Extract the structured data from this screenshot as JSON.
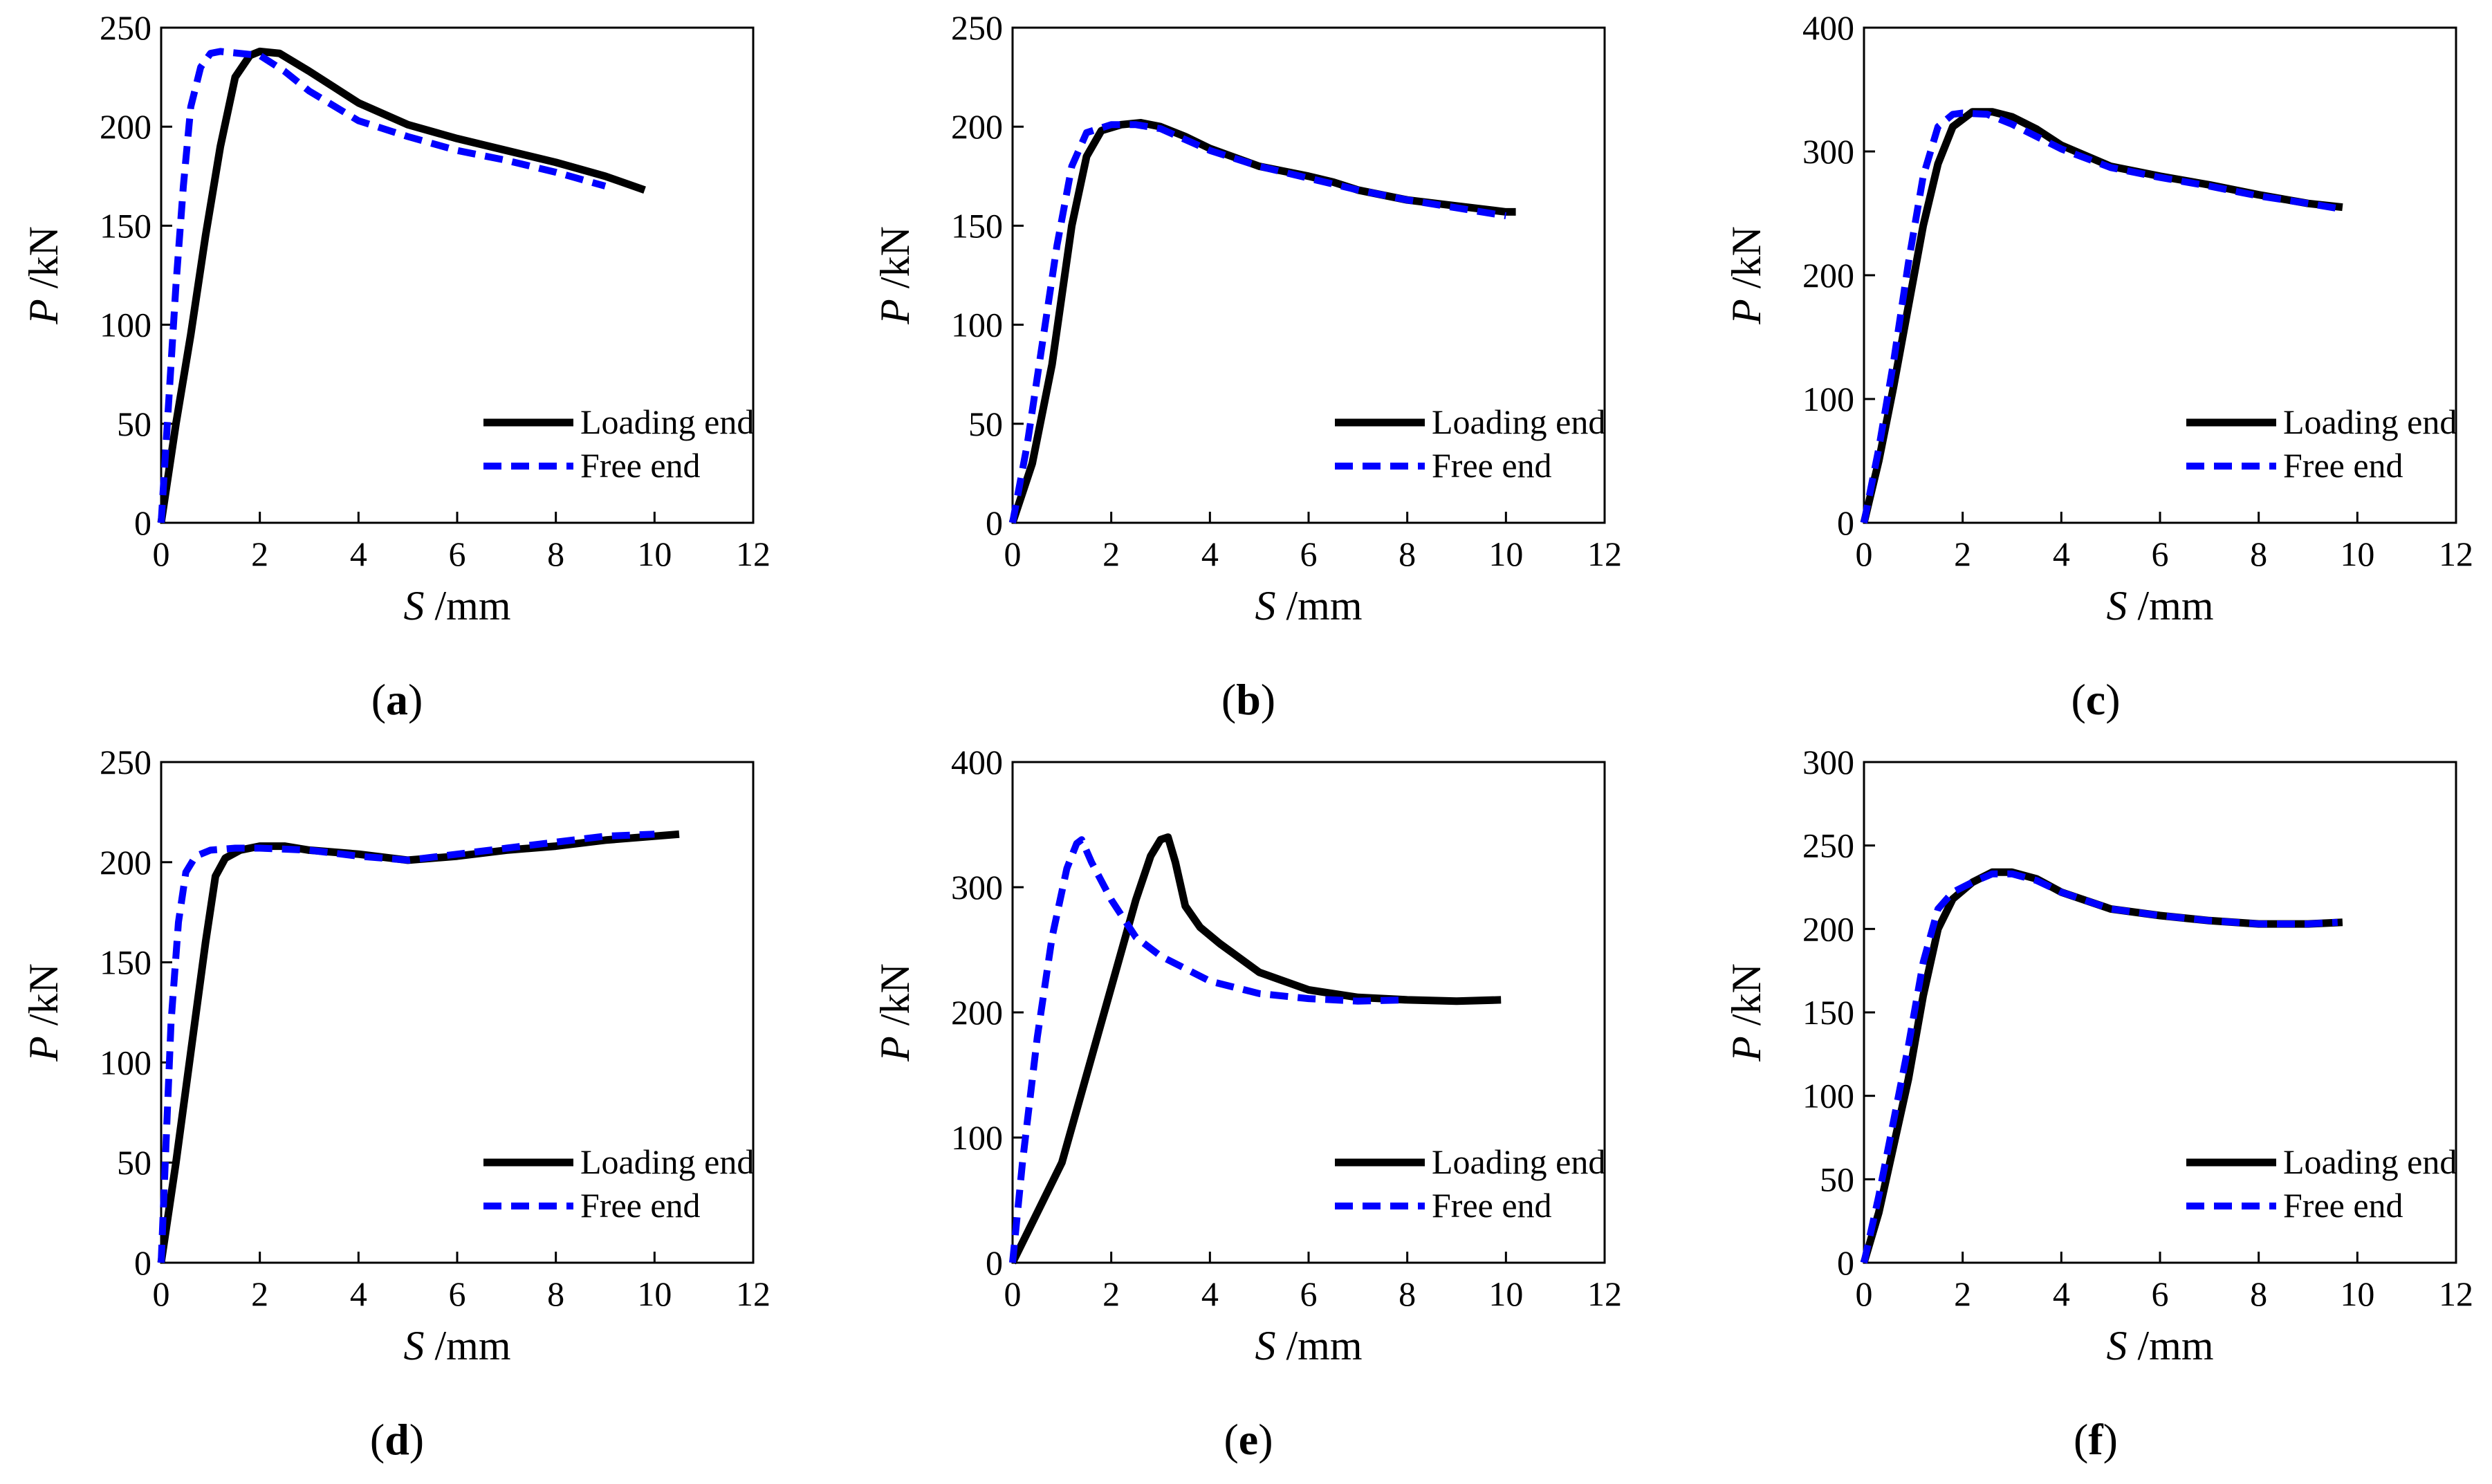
{
  "figure": {
    "legend_labels": [
      "Loading end",
      "Free end"
    ],
    "series_colors": {
      "loading": "#000000",
      "free": "#0000ff"
    },
    "x_label_var": "S",
    "x_label_unit": " /mm",
    "y_label_var": "P",
    "y_label_unit": " /kN"
  },
  "chart_data": [
    {
      "panel": "a",
      "caption_open": "(",
      "caption_letter": "a",
      "caption_close": ")",
      "type": "line",
      "xlabel": "S /mm",
      "ylabel": "P /kN",
      "xlim": [
        0,
        12
      ],
      "ylim": [
        0,
        250
      ],
      "xticks": [
        0,
        2,
        4,
        6,
        8,
        10,
        12
      ],
      "yticks": [
        0,
        50,
        100,
        150,
        200,
        250
      ],
      "legend_position": "lower-right",
      "series": [
        {
          "name": "Loading end",
          "style": "solid",
          "color": "#000000",
          "x": [
            0,
            0.3,
            0.6,
            0.9,
            1.2,
            1.5,
            1.8,
            2.0,
            2.4,
            3.0,
            3.5,
            4.0,
            5.0,
            6.0,
            7.0,
            8.0,
            9.0,
            9.8
          ],
          "y": [
            0,
            50,
            95,
            145,
            190,
            225,
            236,
            238,
            237,
            228,
            220,
            212,
            201,
            194,
            188,
            182,
            175,
            168
          ]
        },
        {
          "name": "Free end",
          "style": "dashed",
          "color": "#0000ff",
          "x": [
            0,
            0.15,
            0.3,
            0.45,
            0.6,
            0.8,
            1.0,
            1.2,
            2.0,
            2.5,
            3.0,
            4.0,
            5.0,
            6.0,
            7.0,
            8.0,
            9.0
          ],
          "y": [
            0,
            60,
            120,
            170,
            210,
            230,
            237,
            238,
            236,
            228,
            218,
            203,
            195,
            188,
            183,
            177,
            170
          ]
        }
      ]
    },
    {
      "panel": "b",
      "caption_open": "(",
      "caption_letter": "b",
      "caption_close": ")",
      "type": "line",
      "xlabel": "S /mm",
      "ylabel": "P /kN",
      "xlim": [
        0,
        12
      ],
      "ylim": [
        0,
        250
      ],
      "xticks": [
        0,
        2,
        4,
        6,
        8,
        10,
        12
      ],
      "yticks": [
        0,
        50,
        100,
        150,
        200,
        250
      ],
      "legend_position": "lower-right",
      "series": [
        {
          "name": "Loading end",
          "style": "solid",
          "color": "#000000",
          "x": [
            0,
            0.4,
            0.8,
            1.2,
            1.5,
            1.8,
            2.2,
            2.6,
            3.0,
            3.5,
            4.0,
            5.0,
            6.0,
            6.5,
            7.0,
            8.0,
            9.0,
            10.0,
            10.2
          ],
          "y": [
            0,
            30,
            80,
            150,
            185,
            198,
            201,
            202,
            200,
            195,
            189,
            180,
            175,
            172,
            168,
            163,
            160,
            157,
            157
          ]
        },
        {
          "name": "Free end",
          "style": "dashed",
          "color": "#0000ff",
          "x": [
            0,
            0.3,
            0.6,
            0.9,
            1.2,
            1.5,
            2.0,
            2.5,
            3.0,
            4.0,
            5.0,
            6.0,
            7.0,
            8.0,
            9.0,
            10.0
          ],
          "y": [
            0,
            40,
            90,
            140,
            180,
            197,
            201,
            201,
            199,
            188,
            180,
            174,
            168,
            163,
            159,
            155
          ]
        }
      ]
    },
    {
      "panel": "c",
      "caption_open": "(",
      "caption_letter": "c",
      "caption_close": ")",
      "type": "line",
      "xlabel": "S /mm",
      "ylabel": "P /kN",
      "xlim": [
        0,
        12
      ],
      "ylim": [
        0,
        400
      ],
      "xticks": [
        0,
        2,
        4,
        6,
        8,
        10,
        12
      ],
      "yticks": [
        0,
        100,
        200,
        300,
        400
      ],
      "legend_position": "lower-right",
      "series": [
        {
          "name": "Loading end",
          "style": "solid",
          "color": "#000000",
          "x": [
            0,
            0.3,
            0.6,
            0.9,
            1.2,
            1.5,
            1.8,
            2.2,
            2.6,
            3.0,
            3.5,
            4.0,
            5.0,
            6.0,
            7.0,
            8.0,
            9.0,
            9.7
          ],
          "y": [
            0,
            50,
            110,
            175,
            240,
            290,
            320,
            332,
            332,
            328,
            318,
            305,
            288,
            280,
            273,
            265,
            258,
            255
          ]
        },
        {
          "name": "Free end",
          "style": "dashed",
          "color": "#0000ff",
          "x": [
            0,
            0.3,
            0.6,
            0.9,
            1.2,
            1.5,
            1.8,
            2.0,
            2.5,
            3.0,
            4.0,
            5.0,
            6.0,
            7.0,
            8.0,
            9.0,
            9.6
          ],
          "y": [
            0,
            60,
            130,
            210,
            280,
            320,
            330,
            331,
            330,
            322,
            302,
            287,
            279,
            272,
            264,
            258,
            254
          ]
        }
      ]
    },
    {
      "panel": "d",
      "caption_open": "(",
      "caption_letter": "d",
      "caption_close": ")",
      "type": "line",
      "xlabel": "S /mm",
      "ylabel": "P /kN",
      "xlim": [
        0,
        12
      ],
      "ylim": [
        0,
        250
      ],
      "xticks": [
        0,
        2,
        4,
        6,
        8,
        10,
        12
      ],
      "yticks": [
        0,
        50,
        100,
        150,
        200,
        250
      ],
      "legend_position": "lower-right",
      "series": [
        {
          "name": "Loading end",
          "style": "solid",
          "color": "#000000",
          "x": [
            0,
            0.3,
            0.6,
            0.9,
            1.1,
            1.3,
            1.6,
            2.0,
            2.5,
            3.0,
            4.0,
            5.0,
            6.0,
            7.0,
            8.0,
            9.0,
            10.0,
            10.5
          ],
          "y": [
            0,
            50,
            105,
            160,
            193,
            202,
            206,
            208,
            208,
            206,
            204,
            201,
            203,
            206,
            208,
            211,
            213,
            214
          ]
        },
        {
          "name": "Free end",
          "style": "dashed",
          "color": "#0000ff",
          "x": [
            0,
            0.1,
            0.2,
            0.35,
            0.5,
            0.7,
            1.0,
            1.5,
            2.0,
            3.0,
            4.0,
            5.0,
            6.0,
            7.0,
            8.0,
            9.0,
            10.0
          ],
          "y": [
            0,
            60,
            120,
            170,
            195,
            203,
            206,
            207,
            207,
            206,
            203,
            201,
            204,
            207,
            210,
            213,
            214
          ]
        }
      ]
    },
    {
      "panel": "e",
      "caption_open": "(",
      "caption_letter": "e",
      "caption_close": ")",
      "type": "line",
      "xlabel": "S /mm",
      "ylabel": "P /kN",
      "xlim": [
        0,
        12
      ],
      "ylim": [
        0,
        400
      ],
      "xticks": [
        0,
        2,
        4,
        6,
        8,
        10,
        12
      ],
      "yticks": [
        0,
        100,
        200,
        300,
        400
      ],
      "legend_position": "lower-right",
      "series": [
        {
          "name": "Loading end",
          "style": "solid",
          "color": "#000000",
          "x": [
            0,
            0.5,
            1.0,
            1.5,
            2.0,
            2.5,
            2.8,
            3.0,
            3.15,
            3.3,
            3.5,
            3.8,
            4.2,
            5.0,
            6.0,
            7.0,
            8.0,
            9.0,
            9.9
          ],
          "y": [
            0,
            40,
            80,
            150,
            220,
            290,
            325,
            338,
            340,
            320,
            285,
            268,
            255,
            232,
            218,
            212,
            210,
            209,
            210
          ]
        },
        {
          "name": "Free end",
          "style": "dashed",
          "color": "#0000ff",
          "x": [
            0,
            0.2,
            0.5,
            0.8,
            1.1,
            1.3,
            1.4,
            1.6,
            2.0,
            2.5,
            3.0,
            4.0,
            5.0,
            6.0,
            7.0,
            8.0
          ],
          "y": [
            0,
            80,
            180,
            260,
            315,
            335,
            338,
            320,
            290,
            260,
            245,
            225,
            215,
            211,
            209,
            210
          ]
        }
      ]
    },
    {
      "panel": "f",
      "caption_open": "(",
      "caption_letter": "f",
      "caption_close": ")",
      "type": "line",
      "xlabel": "S /mm",
      "ylabel": "P /kN",
      "xlim": [
        0,
        12
      ],
      "ylim": [
        0,
        300
      ],
      "xticks": [
        0,
        2,
        4,
        6,
        8,
        10,
        12
      ],
      "yticks": [
        0,
        50,
        100,
        150,
        200,
        250,
        300
      ],
      "legend_position": "lower-right",
      "series": [
        {
          "name": "Loading end",
          "style": "solid",
          "color": "#000000",
          "x": [
            0,
            0.3,
            0.6,
            0.9,
            1.2,
            1.5,
            1.8,
            2.2,
            2.6,
            3.0,
            3.5,
            4.0,
            5.0,
            6.0,
            7.0,
            8.0,
            9.0,
            9.7
          ],
          "y": [
            0,
            30,
            70,
            110,
            160,
            200,
            218,
            228,
            234,
            234,
            230,
            222,
            212,
            208,
            205,
            203,
            203,
            204
          ]
        },
        {
          "name": "Free end",
          "style": "dashed",
          "color": "#0000ff",
          "x": [
            0,
            0.3,
            0.6,
            0.9,
            1.2,
            1.5,
            1.8,
            2.2,
            2.6,
            3.0,
            3.5,
            4.0,
            5.0,
            6.0,
            7.0,
            8.0,
            9.0,
            9.6
          ],
          "y": [
            0,
            40,
            85,
            130,
            180,
            212,
            222,
            228,
            233,
            233,
            229,
            222,
            212,
            208,
            205,
            203,
            203,
            204
          ]
        }
      ]
    }
  ]
}
